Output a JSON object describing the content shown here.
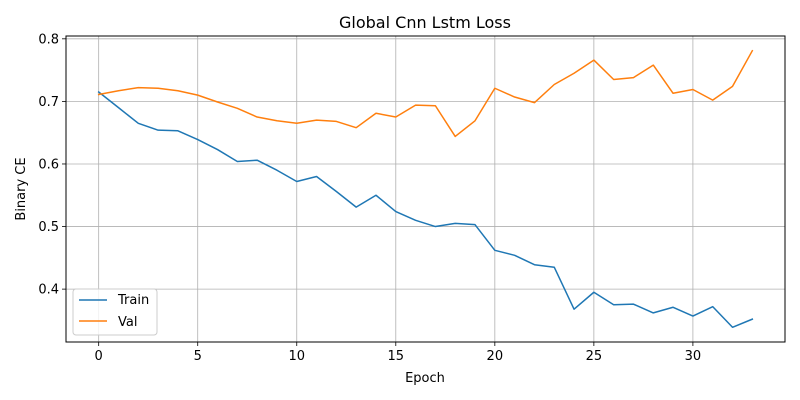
{
  "chart_data": {
    "type": "line",
    "title": "Global Cnn Lstm Loss",
    "xlabel": "Epoch",
    "ylabel": "Binary CE",
    "xlim": [
      -1.65,
      34.65
    ],
    "ylim": [
      0.3155,
      0.8045
    ],
    "xticks": [
      0,
      5,
      10,
      15,
      20,
      25,
      30
    ],
    "yticks": [
      0.4,
      0.5,
      0.6,
      0.7,
      0.8
    ],
    "grid": true,
    "legend_position": "lower-left",
    "x": [
      0,
      1,
      2,
      3,
      4,
      5,
      6,
      7,
      8,
      9,
      10,
      11,
      12,
      13,
      14,
      15,
      16,
      17,
      18,
      19,
      20,
      21,
      22,
      23,
      24,
      25,
      26,
      27,
      28,
      29,
      30,
      31,
      32,
      33
    ],
    "series": [
      {
        "name": "Train",
        "color": "#1f77b4",
        "values": [
          0.715,
          0.69,
          0.665,
          0.654,
          0.653,
          0.639,
          0.623,
          0.604,
          0.606,
          0.59,
          0.572,
          0.58,
          0.556,
          0.531,
          0.55,
          0.524,
          0.51,
          0.5,
          0.505,
          0.503,
          0.462,
          0.454,
          0.439,
          0.435,
          0.368,
          0.395,
          0.375,
          0.376,
          0.362,
          0.371,
          0.357,
          0.372,
          0.339,
          0.352
        ]
      },
      {
        "name": "Val",
        "color": "#ff7f0e",
        "values": [
          0.711,
          0.717,
          0.722,
          0.721,
          0.717,
          0.71,
          0.699,
          0.689,
          0.675,
          0.669,
          0.665,
          0.67,
          0.668,
          0.658,
          0.681,
          0.675,
          0.694,
          0.693,
          0.644,
          0.669,
          0.721,
          0.707,
          0.698,
          0.727,
          0.745,
          0.766,
          0.735,
          0.738,
          0.758,
          0.713,
          0.719,
          0.702,
          0.724,
          0.781
        ]
      }
    ]
  }
}
